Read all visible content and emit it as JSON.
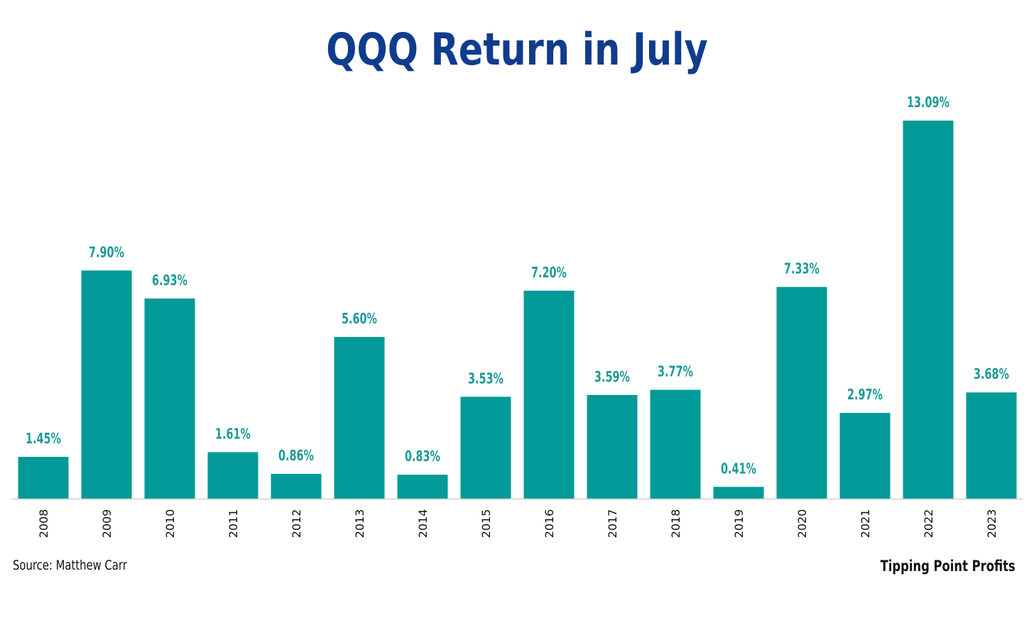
{
  "chart_data": {
    "type": "bar",
    "title": "QQQ Return in July",
    "categories": [
      "2008",
      "2009",
      "2010",
      "2011",
      "2012",
      "2013",
      "2014",
      "2015",
      "2016",
      "2017",
      "2018",
      "2019",
      "2020",
      "2021",
      "2022",
      "2023"
    ],
    "values": [
      1.45,
      7.9,
      6.93,
      1.61,
      0.86,
      5.6,
      0.83,
      3.53,
      7.2,
      3.59,
      3.77,
      0.41,
      7.33,
      2.97,
      13.09,
      3.68
    ],
    "data_labels": [
      "1.45%",
      "7.90%",
      "6.93%",
      "1.61%",
      "0.86%",
      "5.60%",
      "0.83%",
      "3.53%",
      "7.20%",
      "3.59%",
      "3.77%",
      "0.41%",
      "7.33%",
      "2.97%",
      "13.09%",
      "3.68%"
    ],
    "ylim": [
      0,
      13.09
    ],
    "grid": false,
    "bar_color": "#029a98",
    "label_color": "#1b9a97"
  },
  "title_color": "#0f3c8c",
  "footer": {
    "source": "Source: Matthew Carr",
    "brand": "Tipping Point Profits"
  }
}
